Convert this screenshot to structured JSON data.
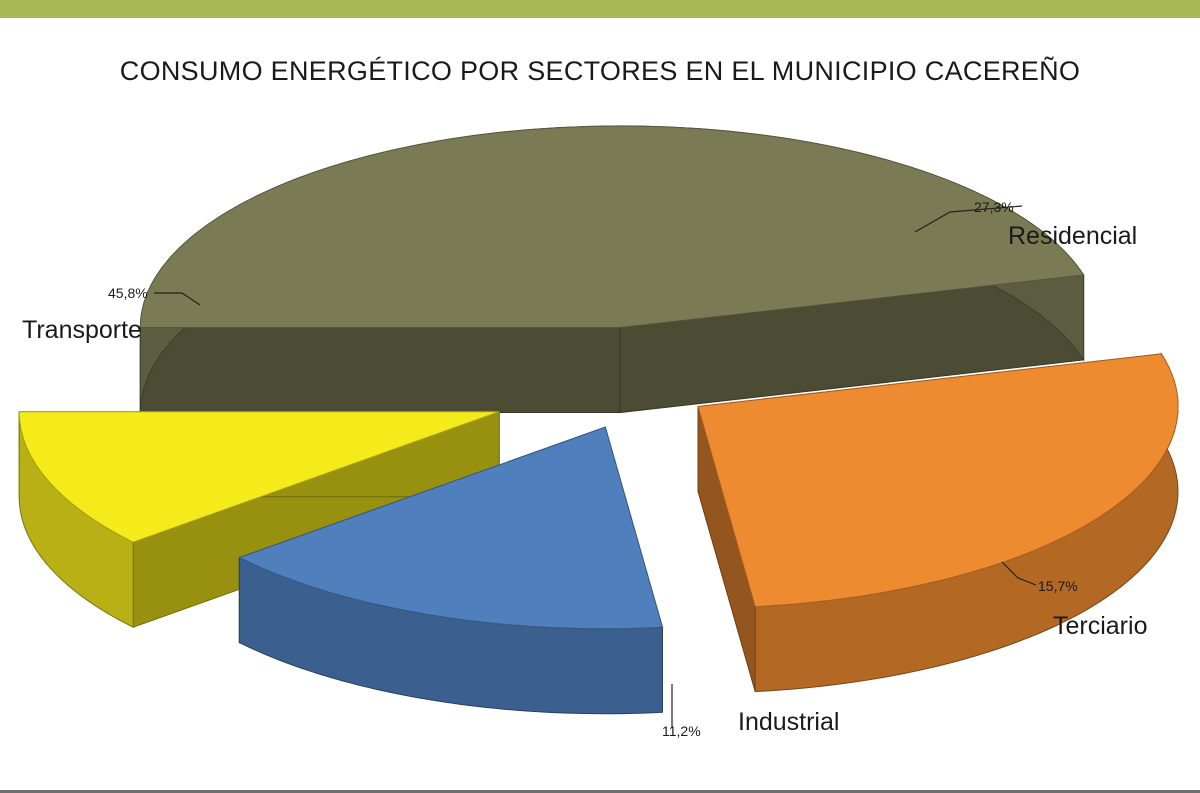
{
  "colors": {
    "top_bar": "#a9b955",
    "transporte": "#7a7b55",
    "residencial": "#ee8b30",
    "industrial": "#f5ea1a",
    "terciario": "#4f7fbd"
  },
  "chart_data": {
    "type": "pie",
    "style": "3d-exploded",
    "title": "CONSUMO ENERGÉTICO POR SECTORES EN EL MUNICIPIO CACEREÑO",
    "slices": [
      {
        "name": "Transporte",
        "value": 45.8,
        "label": "45,8%",
        "color": "#7a7b55"
      },
      {
        "name": "Residencial",
        "value": 27.3,
        "label": "27,3%",
        "color": "#ee8b30"
      },
      {
        "name": "Terciario",
        "value": 15.7,
        "label": "15,7%",
        "color": "#4f7fbd"
      },
      {
        "name": "Industrial",
        "value": 11.2,
        "label": "11,2%",
        "color": "#f5ea1a"
      }
    ],
    "legend": "none"
  }
}
